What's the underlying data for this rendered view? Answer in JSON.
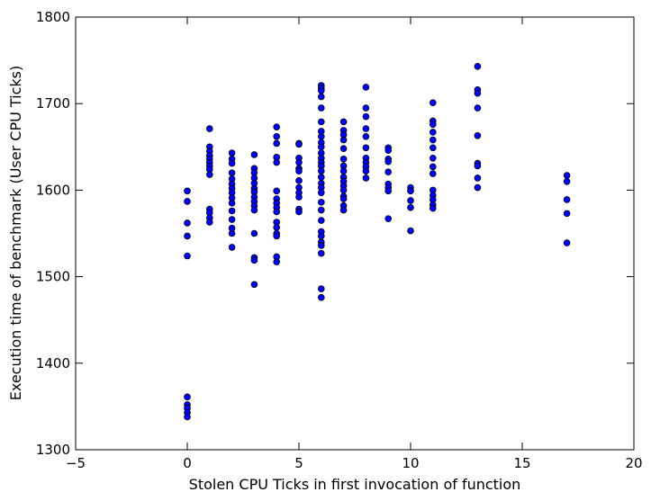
{
  "chart_data": {
    "type": "scatter",
    "title": "",
    "xlabel": "Stolen CPU Ticks in first invocation of function",
    "ylabel": "Execution time of benchmark (User CPU Ticks)",
    "xlim": [
      -5,
      20
    ],
    "ylim": [
      1300,
      1800
    ],
    "xticks": [
      -5,
      0,
      5,
      10,
      15,
      20
    ],
    "yticks": [
      1300,
      1400,
      1500,
      1600,
      1700,
      1800
    ],
    "xtick_labels": [
      "−5",
      "0",
      "5",
      "10",
      "15",
      "20"
    ],
    "ytick_labels": [
      "1300",
      "1400",
      "1500",
      "1600",
      "1700",
      "1800"
    ],
    "grid": false,
    "marker_color": "#0000ff",
    "marker_edge_color": "#000000",
    "series": [
      {
        "points": [
          [
            0,
            1599
          ],
          [
            0,
            1587
          ],
          [
            0,
            1562
          ],
          [
            0,
            1547
          ],
          [
            0,
            1524
          ],
          [
            0,
            1361
          ],
          [
            0,
            1352
          ],
          [
            0,
            1348
          ],
          [
            0,
            1343
          ],
          [
            0,
            1338
          ],
          [
            1,
            1671
          ],
          [
            1,
            1650
          ],
          [
            1,
            1645
          ],
          [
            1,
            1640
          ],
          [
            1,
            1636
          ],
          [
            1,
            1632
          ],
          [
            1,
            1628
          ],
          [
            1,
            1624
          ],
          [
            1,
            1618
          ],
          [
            1,
            1578
          ],
          [
            1,
            1574
          ],
          [
            1,
            1568
          ],
          [
            1,
            1563
          ],
          [
            2,
            1643
          ],
          [
            2,
            1636
          ],
          [
            2,
            1631
          ],
          [
            2,
            1620
          ],
          [
            2,
            1613
          ],
          [
            2,
            1607
          ],
          [
            2,
            1602
          ],
          [
            2,
            1597
          ],
          [
            2,
            1591
          ],
          [
            2,
            1585
          ],
          [
            2,
            1576
          ],
          [
            2,
            1566
          ],
          [
            2,
            1556
          ],
          [
            2,
            1550
          ],
          [
            2,
            1534
          ],
          [
            3,
            1641
          ],
          [
            3,
            1625
          ],
          [
            3,
            1620
          ],
          [
            3,
            1614
          ],
          [
            3,
            1608
          ],
          [
            3,
            1602
          ],
          [
            3,
            1598
          ],
          [
            3,
            1592
          ],
          [
            3,
            1587
          ],
          [
            3,
            1582
          ],
          [
            3,
            1577
          ],
          [
            3,
            1550
          ],
          [
            3,
            1522
          ],
          [
            3,
            1519
          ],
          [
            3,
            1491
          ],
          [
            4,
            1673
          ],
          [
            4,
            1662
          ],
          [
            4,
            1654
          ],
          [
            4,
            1638
          ],
          [
            4,
            1632
          ],
          [
            4,
            1599
          ],
          [
            4,
            1590
          ],
          [
            4,
            1585
          ],
          [
            4,
            1580
          ],
          [
            4,
            1575
          ],
          [
            4,
            1563
          ],
          [
            4,
            1557
          ],
          [
            4,
            1550
          ],
          [
            4,
            1547
          ],
          [
            4,
            1523
          ],
          [
            4,
            1517
          ],
          [
            5,
            1654
          ],
          [
            5,
            1653
          ],
          [
            5,
            1637
          ],
          [
            5,
            1632
          ],
          [
            5,
            1625
          ],
          [
            5,
            1622
          ],
          [
            5,
            1611
          ],
          [
            5,
            1603
          ],
          [
            5,
            1597
          ],
          [
            5,
            1592
          ],
          [
            5,
            1578
          ],
          [
            5,
            1575
          ],
          [
            6,
            1721
          ],
          [
            6,
            1718
          ],
          [
            6,
            1715
          ],
          [
            6,
            1708
          ],
          [
            6,
            1695
          ],
          [
            6,
            1679
          ],
          [
            6,
            1668
          ],
          [
            6,
            1662
          ],
          [
            6,
            1655
          ],
          [
            6,
            1650
          ],
          [
            6,
            1643
          ],
          [
            6,
            1637
          ],
          [
            6,
            1632
          ],
          [
            6,
            1628
          ],
          [
            6,
            1622
          ],
          [
            6,
            1615
          ],
          [
            6,
            1608
          ],
          [
            6,
            1603
          ],
          [
            6,
            1597
          ],
          [
            6,
            1586
          ],
          [
            6,
            1577
          ],
          [
            6,
            1565
          ],
          [
            6,
            1552
          ],
          [
            6,
            1547
          ],
          [
            6,
            1540
          ],
          [
            6,
            1536
          ],
          [
            6,
            1527
          ],
          [
            6,
            1486
          ],
          [
            6,
            1476
          ],
          [
            7,
            1679
          ],
          [
            7,
            1669
          ],
          [
            7,
            1664
          ],
          [
            7,
            1658
          ],
          [
            7,
            1648
          ],
          [
            7,
            1636
          ],
          [
            7,
            1628
          ],
          [
            7,
            1622
          ],
          [
            7,
            1615
          ],
          [
            7,
            1610
          ],
          [
            7,
            1605
          ],
          [
            7,
            1600
          ],
          [
            7,
            1593
          ],
          [
            7,
            1590
          ],
          [
            7,
            1582
          ],
          [
            7,
            1577
          ],
          [
            8,
            1719
          ],
          [
            8,
            1695
          ],
          [
            8,
            1685
          ],
          [
            8,
            1671
          ],
          [
            8,
            1662
          ],
          [
            8,
            1649
          ],
          [
            8,
            1637
          ],
          [
            8,
            1632
          ],
          [
            8,
            1627
          ],
          [
            8,
            1622
          ],
          [
            8,
            1614
          ],
          [
            9,
            1649
          ],
          [
            9,
            1646
          ],
          [
            9,
            1636
          ],
          [
            9,
            1633
          ],
          [
            9,
            1621
          ],
          [
            9,
            1607
          ],
          [
            9,
            1603
          ],
          [
            9,
            1599
          ],
          [
            9,
            1567
          ],
          [
            10,
            1603
          ],
          [
            10,
            1599
          ],
          [
            10,
            1588
          ],
          [
            10,
            1580
          ],
          [
            10,
            1553
          ],
          [
            11,
            1701
          ],
          [
            11,
            1680
          ],
          [
            11,
            1676
          ],
          [
            11,
            1667
          ],
          [
            11,
            1658
          ],
          [
            11,
            1649
          ],
          [
            11,
            1637
          ],
          [
            11,
            1627
          ],
          [
            11,
            1619
          ],
          [
            11,
            1600
          ],
          [
            11,
            1594
          ],
          [
            11,
            1589
          ],
          [
            11,
            1583
          ],
          [
            11,
            1579
          ],
          [
            13,
            1743
          ],
          [
            13,
            1716
          ],
          [
            13,
            1712
          ],
          [
            13,
            1695
          ],
          [
            13,
            1663
          ],
          [
            13,
            1631
          ],
          [
            13,
            1628
          ],
          [
            13,
            1614
          ],
          [
            13,
            1603
          ],
          [
            17,
            1617
          ],
          [
            17,
            1610
          ],
          [
            17,
            1589
          ],
          [
            17,
            1573
          ],
          [
            17,
            1539
          ]
        ]
      }
    ]
  }
}
